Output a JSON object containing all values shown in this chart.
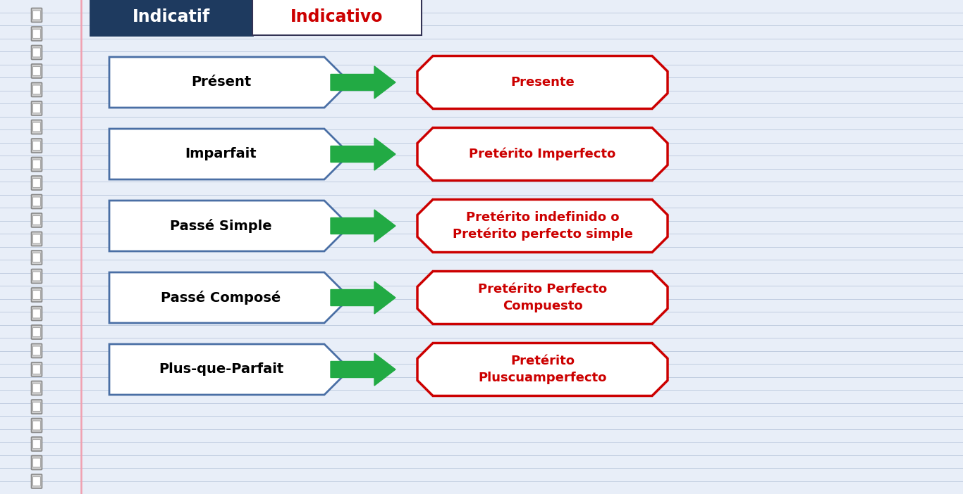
{
  "title_fr": "Indicatif",
  "title_es": "Indicativo",
  "title_fr_bg": "#1e3a5f",
  "title_fr_color": "#ffffff",
  "title_es_color": "#cc0000",
  "title_es_border": "#1e3a5f",
  "bg_color": "#e8eef8",
  "line_color": "#c0cce0",
  "left_box_border": "#4a6fa5",
  "right_box_border": "#cc0000",
  "arrow_color": "#22aa44",
  "left_text_color": "#000000",
  "right_text_color": "#cc0000",
  "spiral_color": "#aaaaaa",
  "margin_line_color": "#f0a0b0",
  "rows": [
    {
      "fr": "Présent",
      "es": "Presente"
    },
    {
      "fr": "Imparfait",
      "es": "Pretérito Imperfecto"
    },
    {
      "fr": "Passé Simple",
      "es": "Pretérito indefinido o\nPretérito perfecto simple"
    },
    {
      "fr": "Passé Composé",
      "es": "Pretérito Perfecto\nCompuesto"
    },
    {
      "fr": "Plus-que-Parfait",
      "es": "Pretérito\nPluscuamperfecto"
    }
  ],
  "fig_width": 13.66,
  "fig_height": 7.02,
  "dpi": 100
}
